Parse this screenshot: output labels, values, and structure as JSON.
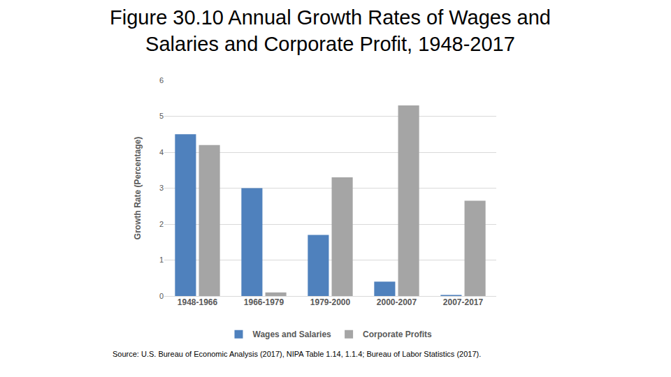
{
  "chart_data": {
    "type": "bar",
    "title": [
      "Figure 30.10 Annual Growth Rates of Wages and",
      "Salaries and Corporate Profit, 1948-2017"
    ],
    "y_label": "Growth Rate (Percentage)",
    "categories": [
      "1948-1966",
      "1966-1979",
      "1979-2000",
      "2000-2007",
      "2007-2017"
    ],
    "series": [
      {
        "name": "Wages and Salaries",
        "color": "#4f81bd",
        "values": [
          4.5,
          3.0,
          1.7,
          0.4,
          0.03
        ]
      },
      {
        "name": "Corporate Profits",
        "color": "#a5a5a5",
        "values": [
          4.2,
          0.1,
          3.3,
          5.3,
          2.65
        ]
      }
    ],
    "ylim": [
      0,
      6
    ],
    "yticks": [
      0,
      1,
      2,
      3,
      4,
      5,
      6
    ],
    "grid": true,
    "legend": "bottom",
    "annotations": [
      "Source: U.S. Bureau of Economic Analysis (2017), NIPA Table 1.14, 1.1.4; Bureau of Labor Statistics (2017)."
    ]
  }
}
